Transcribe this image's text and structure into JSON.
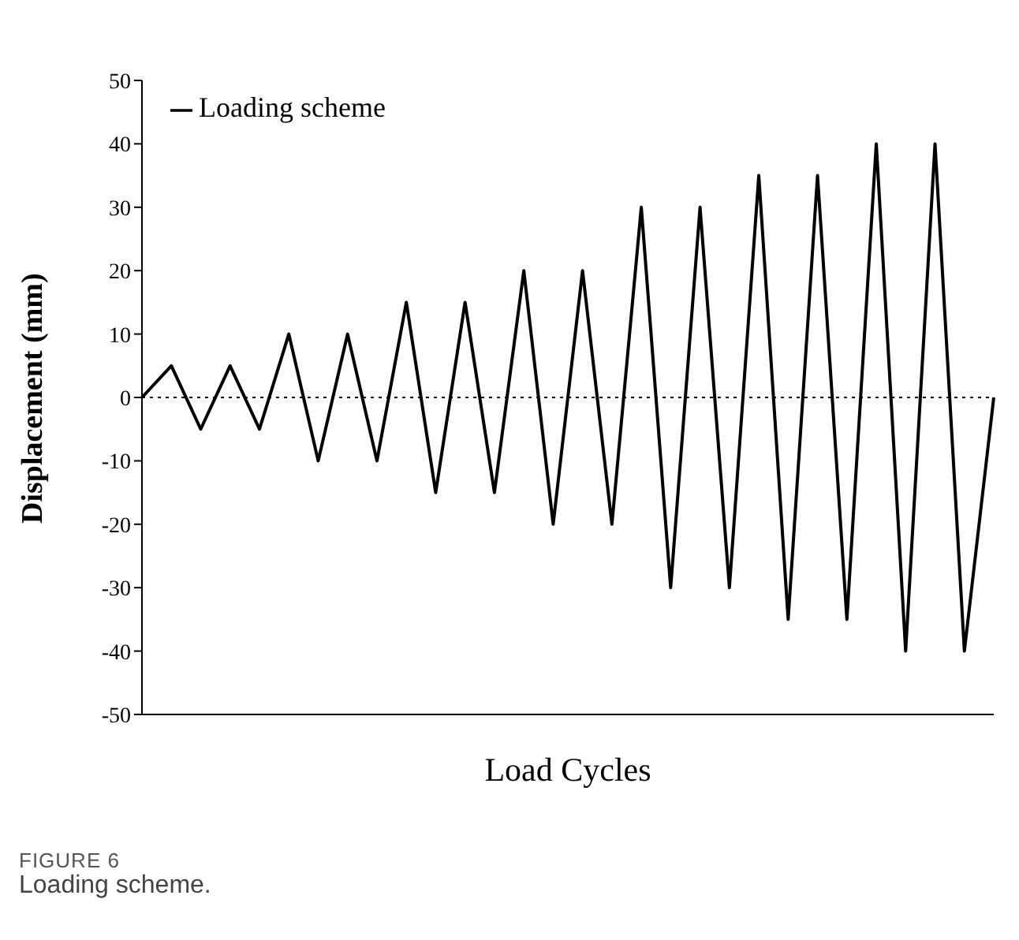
{
  "chart_data": {
    "type": "line",
    "xlabel": "Load Cycles",
    "ylabel": "Displacement (mm)",
    "categories": [
      null,
      null,
      null,
      null,
      null,
      null,
      null,
      null,
      null,
      null,
      null,
      null,
      null,
      null,
      null,
      null,
      null,
      null,
      null,
      null,
      null,
      null,
      null,
      null,
      null,
      null,
      null,
      null,
      null,
      null
    ],
    "series": [
      {
        "name": "Loading scheme",
        "color": "#000000",
        "values": [
          0,
          5,
          -5,
          5,
          -5,
          10,
          -10,
          10,
          -10,
          15,
          -15,
          15,
          -15,
          20,
          -20,
          20,
          -20,
          30,
          -30,
          30,
          -30,
          35,
          -35,
          35,
          -35,
          40,
          -40,
          40,
          -40,
          0
        ]
      }
    ],
    "ylim": [
      -50,
      50
    ],
    "yticks": [
      -50,
      -40,
      -30,
      -20,
      -10,
      0,
      10,
      20,
      30,
      40,
      50
    ],
    "ref_lines": [
      {
        "axis": "y",
        "value": 0,
        "color": "#000000",
        "line_style": "dotted"
      }
    ],
    "tick_labels": "y",
    "legend": "top left",
    "marker": "none",
    "line_style": "solid",
    "grid": false,
    "annotations": [
      "FIGURE 6",
      "Loading scheme."
    ]
  }
}
